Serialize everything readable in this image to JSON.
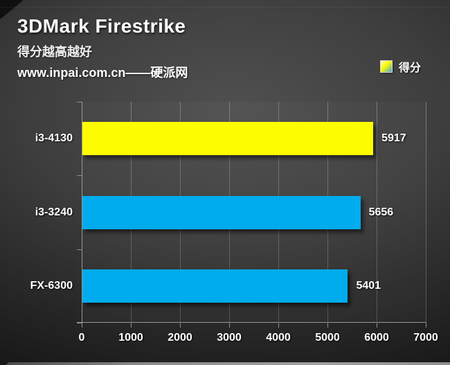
{
  "header": {
    "title": "3DMark Firestrike",
    "subtitle": "得分越高越好",
    "watermark": "www.inpai.com.cn——硬派网"
  },
  "legend": {
    "label": "得分",
    "swatch_gradient": [
      "#ffffc6",
      "#f8f800",
      "#4da3e2"
    ]
  },
  "chart_data": {
    "type": "bar",
    "orientation": "horizontal",
    "title": "3DMark Firestrike",
    "legend_entries": [
      "得分"
    ],
    "categories": [
      "i3-4130",
      "i3-3240",
      "FX-6300"
    ],
    "values": [
      5917,
      5656,
      5401
    ],
    "value_labels": [
      "5917",
      "5656",
      "5401"
    ],
    "bar_colors": [
      "#fdfd00",
      "#00aced",
      "#00aced"
    ],
    "xlim": [
      0,
      7000
    ],
    "xticks": [
      0,
      1000,
      2000,
      3000,
      4000,
      5000,
      6000,
      7000
    ],
    "xtick_labels": [
      "0",
      "1000",
      "2000",
      "3000",
      "4000",
      "5000",
      "6000",
      "7000"
    ],
    "grid": true,
    "gridline_color": "#6e6e6e",
    "axis_color": "#989898",
    "text_color": "#ffffff",
    "background": "dark-gradient"
  }
}
